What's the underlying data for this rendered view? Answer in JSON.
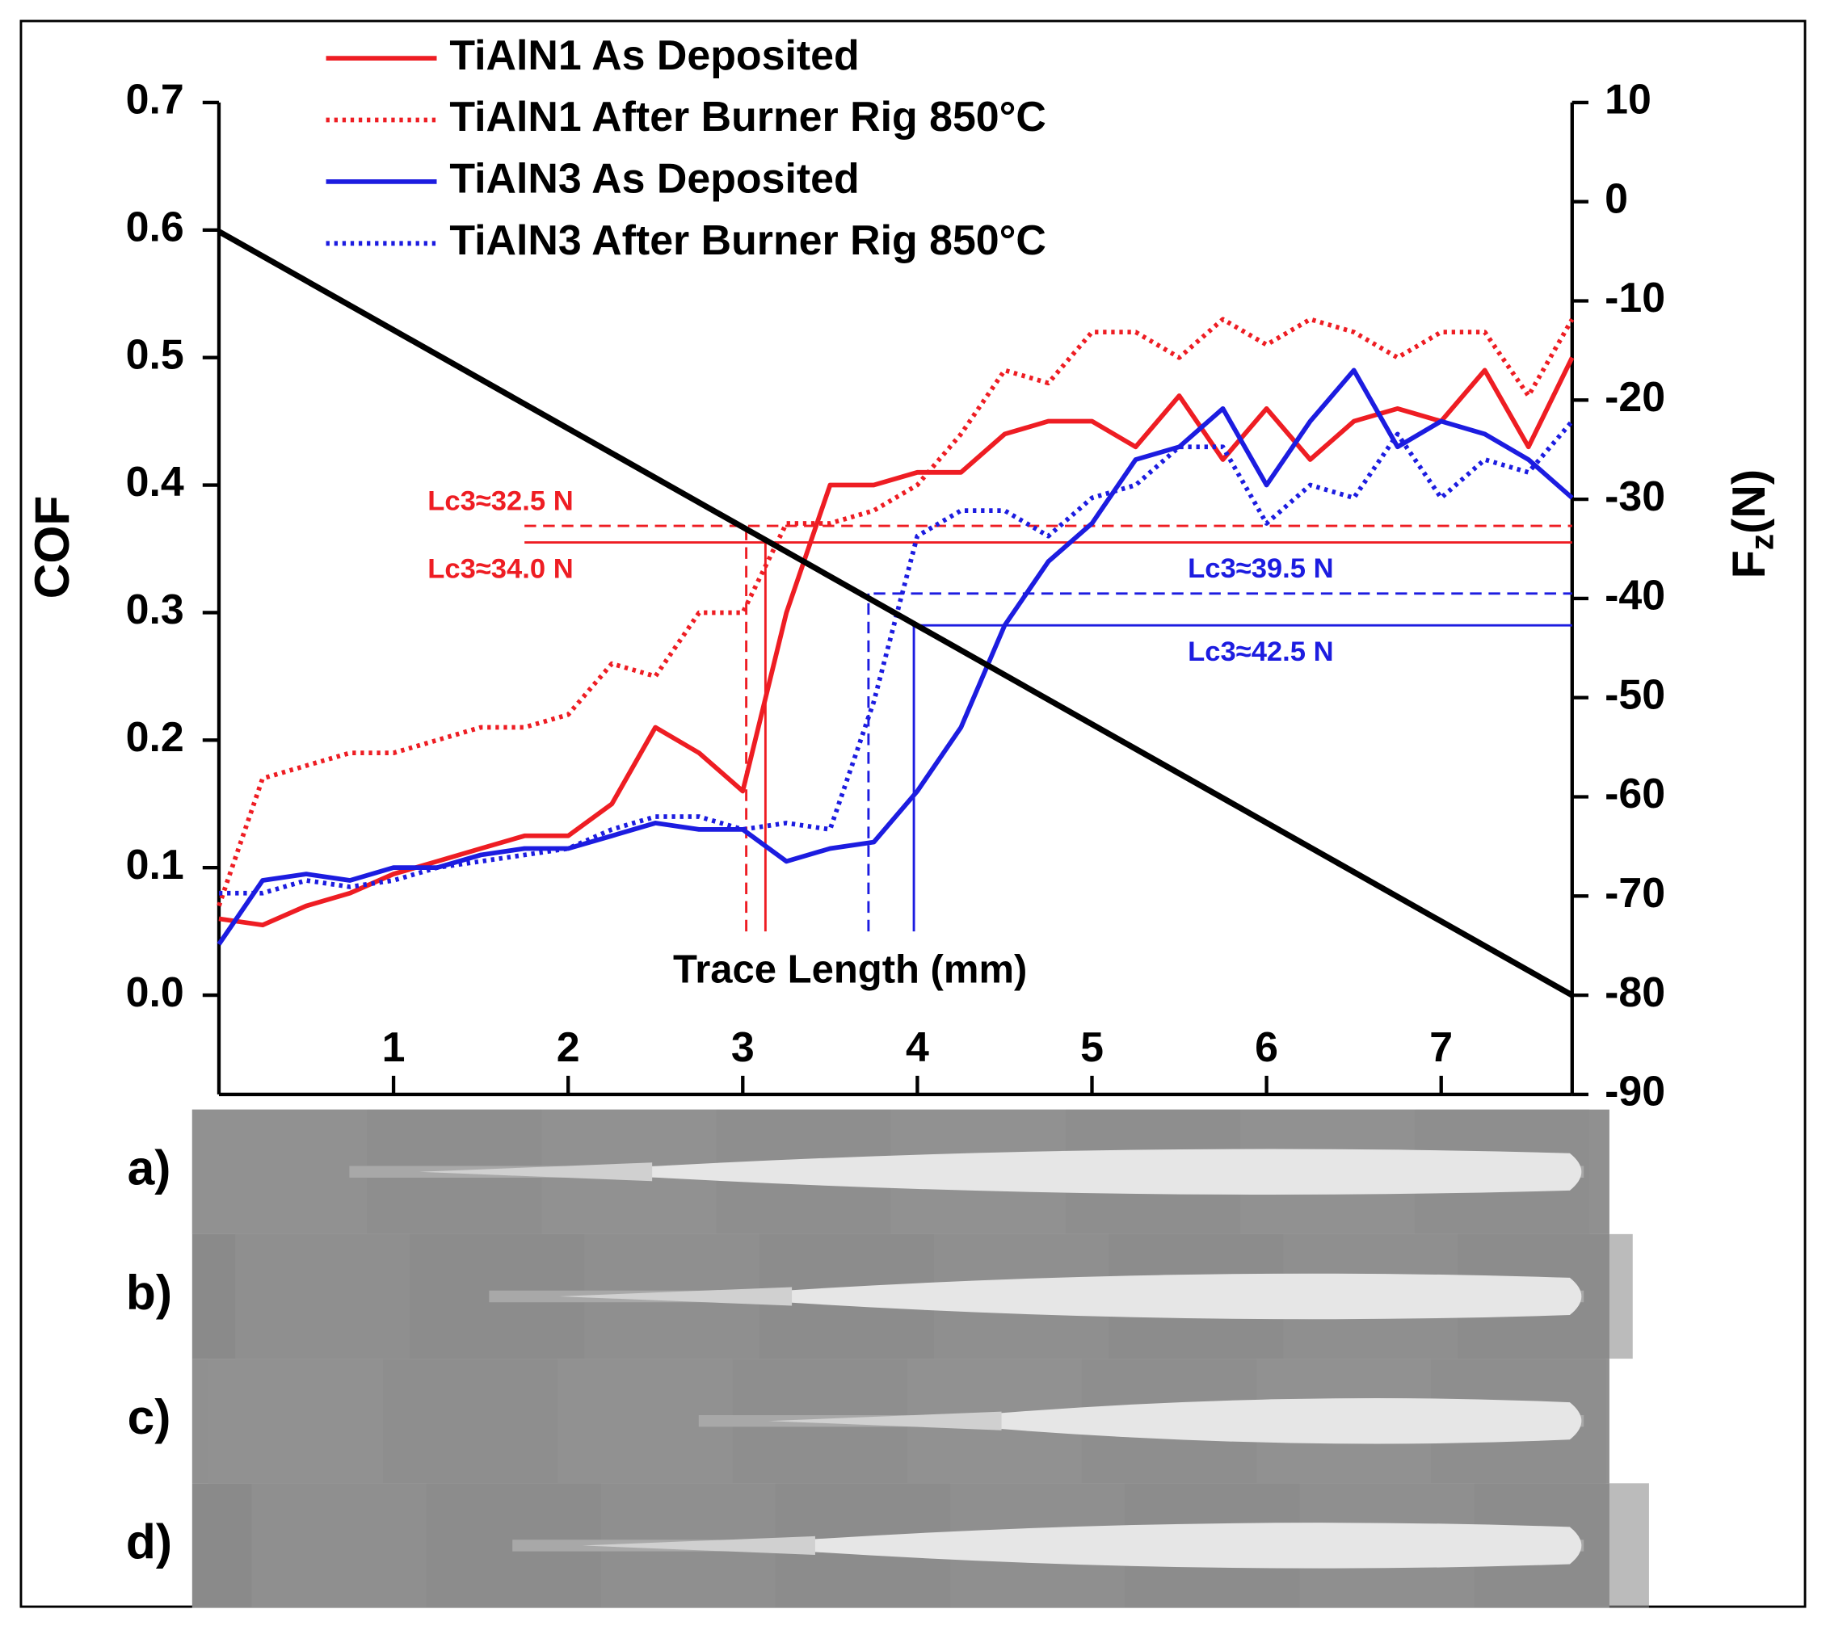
{
  "chart_data": {
    "type": "line",
    "x_label": "Trace Length (mm)",
    "y_label": "COF",
    "y2_label": [
      "F",
      "z",
      "(N)"
    ],
    "xlim": [
      0,
      7.75
    ],
    "xticks": [
      1,
      2,
      3,
      4,
      5,
      6,
      7
    ],
    "ylim": [
      -0.0778,
      0.7
    ],
    "yticks": [
      {
        "value": 0,
        "label": "0.0"
      },
      0.1,
      0.2,
      0.3,
      0.4,
      0.5,
      0.6,
      0.7
    ],
    "y2lim": [
      -90,
      10
    ],
    "y2ticks": [
      10,
      0,
      -10,
      -20,
      -30,
      -40,
      -50,
      -60,
      -70,
      -80,
      -90
    ],
    "x": [
      0,
      0.25,
      0.5,
      0.75,
      1,
      1.25,
      1.5,
      1.75,
      2,
      2.25,
      2.5,
      2.75,
      3,
      3.25,
      3.5,
      3.75,
      4,
      4.25,
      4.5,
      4.75,
      5,
      5.25,
      5.5,
      5.75,
      6,
      6.25,
      6.5,
      6.75,
      7,
      7.25,
      7.5,
      7.75
    ],
    "series": [
      {
        "name": "TiAlN1 As Deposited",
        "color": "#ee1d23",
        "style": "solid",
        "values": [
          0.06,
          0.055,
          0.07,
          0.08,
          0.095,
          0.105,
          0.115,
          0.125,
          0.125,
          0.15,
          0.21,
          0.19,
          0.16,
          0.3,
          0.4,
          0.4,
          0.41,
          0.41,
          0.44,
          0.45,
          0.45,
          0.43,
          0.47,
          0.42,
          0.46,
          0.42,
          0.45,
          0.46,
          0.45,
          0.49,
          0.43,
          0.5
        ]
      },
      {
        "name": "TiAlN1 After Burner Rig 850°C",
        "color": "#ee1d23",
        "style": "dotted",
        "values": [
          0.07,
          0.17,
          0.18,
          0.19,
          0.19,
          0.2,
          0.21,
          0.21,
          0.22,
          0.26,
          0.25,
          0.3,
          0.3,
          0.37,
          0.37,
          0.38,
          0.4,
          0.44,
          0.49,
          0.48,
          0.52,
          0.52,
          0.5,
          0.53,
          0.51,
          0.53,
          0.52,
          0.5,
          0.52,
          0.52,
          0.47,
          0.53
        ]
      },
      {
        "name": "TiAlN3 As Deposited",
        "color": "#1c1ce0",
        "style": "solid",
        "values": [
          0.04,
          0.09,
          0.095,
          0.09,
          0.1,
          0.1,
          0.11,
          0.115,
          0.115,
          0.125,
          0.135,
          0.13,
          0.13,
          0.105,
          0.115,
          0.12,
          0.16,
          0.21,
          0.29,
          0.34,
          0.37,
          0.42,
          0.43,
          0.46,
          0.4,
          0.45,
          0.49,
          0.43,
          0.45,
          0.44,
          0.42,
          0.39
        ]
      },
      {
        "name": "TiAlN3 After Burner Rig 850°C",
        "color": "#1c1ce0",
        "style": "dotted",
        "values": [
          0.08,
          0.08,
          0.09,
          0.085,
          0.09,
          0.1,
          0.105,
          0.11,
          0.115,
          0.13,
          0.14,
          0.14,
          0.13,
          0.135,
          0.13,
          0.23,
          0.36,
          0.38,
          0.38,
          0.36,
          0.39,
          0.4,
          0.43,
          0.43,
          0.37,
          0.4,
          0.39,
          0.44,
          0.39,
          0.42,
          0.41,
          0.45
        ]
      },
      {
        "color": "#000000",
        "style": "solid",
        "axis": "y2",
        "x": [
          0,
          7.75
        ],
        "values": [
          -3,
          -80
        ]
      }
    ],
    "annotations": [
      {
        "text": "Lc3≈32.5 N",
        "color": "#ee1d23",
        "style": "dashed",
        "x": 3.02,
        "y": 0.368,
        "x0": 1.75,
        "y0": 0.05,
        "label_side": "left",
        "label_pos": "above"
      },
      {
        "text": "Lc3≈34.0 N",
        "color": "#ee1d23",
        "style": "solid",
        "x": 3.13,
        "y": 0.355,
        "x0": 1.75,
        "y0": 0.05,
        "label_side": "left",
        "label_pos": "below"
      },
      {
        "text": "Lc3≈39.5 N",
        "color": "#1c1ce0",
        "style": "dashed",
        "x": 3.72,
        "y": 0.315,
        "x0": 3.75,
        "y0": 0.05,
        "label_side": "right",
        "label_pos": "above"
      },
      {
        "text": "Lc3≈42.5 N",
        "color": "#1c1ce0",
        "style": "solid",
        "x": 3.98,
        "y": 0.29,
        "x0": 3.97,
        "y0": 0.05,
        "label_side": "right",
        "label_pos": "below"
      }
    ],
    "panels": [
      "a)",
      "b)",
      "c)",
      "d)"
    ]
  }
}
